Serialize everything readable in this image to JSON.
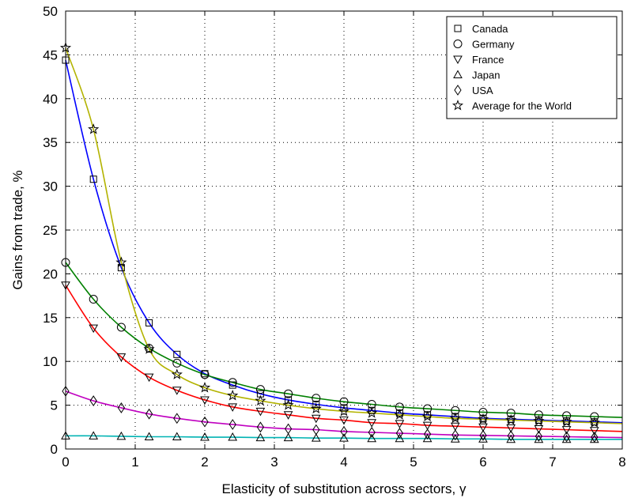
{
  "chart_data": {
    "type": "line",
    "title": "",
    "xlabel": "Elasticity of substitution across sectors, γ",
    "ylabel": "Gains from trade, %",
    "xlim": [
      0,
      8
    ],
    "ylim": [
      0,
      50
    ],
    "xticks": [
      0,
      1,
      2,
      3,
      4,
      5,
      6,
      7,
      8
    ],
    "yticks": [
      0,
      5,
      10,
      15,
      20,
      25,
      30,
      35,
      40,
      45,
      50
    ],
    "grid": true,
    "legend_position": "top-right",
    "x": [
      0,
      0.4,
      0.8,
      1.2,
      1.6,
      2.0,
      2.4,
      2.8,
      3.2,
      3.6,
      4.0,
      4.4,
      4.8,
      5.2,
      5.6,
      6.0,
      6.4,
      6.8,
      7.2,
      7.6
    ],
    "series": [
      {
        "name": "Canada",
        "marker": "square",
        "color": "#0000ff",
        "values": [
          44.4,
          30.8,
          20.7,
          14.4,
          10.8,
          8.6,
          7.3,
          6.3,
          5.6,
          5.1,
          4.7,
          4.4,
          4.1,
          3.9,
          3.7,
          3.5,
          3.4,
          3.3,
          3.2,
          3.1
        ]
      },
      {
        "name": "Germany",
        "marker": "circle",
        "color": "#008000",
        "values": [
          21.3,
          17.1,
          13.9,
          11.5,
          9.8,
          8.5,
          7.6,
          6.8,
          6.3,
          5.8,
          5.4,
          5.1,
          4.8,
          4.6,
          4.4,
          4.2,
          4.1,
          3.9,
          3.8,
          3.7
        ]
      },
      {
        "name": "France",
        "marker": "triangle-down",
        "color": "#ff0000",
        "values": [
          18.7,
          13.8,
          10.5,
          8.2,
          6.7,
          5.6,
          4.8,
          4.3,
          3.9,
          3.5,
          3.3,
          3.0,
          2.9,
          2.7,
          2.6,
          2.5,
          2.4,
          2.3,
          2.2,
          2.1
        ]
      },
      {
        "name": "Japan",
        "marker": "triangle-up",
        "color": "#00b3b3",
        "values": [
          1.5,
          1.5,
          1.45,
          1.4,
          1.4,
          1.35,
          1.35,
          1.3,
          1.3,
          1.25,
          1.25,
          1.2,
          1.2,
          1.2,
          1.15,
          1.15,
          1.1,
          1.1,
          1.1,
          1.1
        ]
      },
      {
        "name": "USA",
        "marker": "diamond",
        "color": "#c000c0",
        "values": [
          6.6,
          5.5,
          4.7,
          4.0,
          3.5,
          3.1,
          2.8,
          2.5,
          2.3,
          2.2,
          2.0,
          1.9,
          1.8,
          1.7,
          1.6,
          1.55,
          1.5,
          1.45,
          1.4,
          1.35
        ]
      },
      {
        "name": "Average for the World",
        "marker": "star",
        "color": "#b3b300",
        "values": [
          45.8,
          36.5,
          21.3,
          11.4,
          8.5,
          7.0,
          6.1,
          5.5,
          5.0,
          4.6,
          4.3,
          4.1,
          3.9,
          3.7,
          3.5,
          3.4,
          3.3,
          3.2,
          3.1,
          3.0
        ]
      }
    ]
  }
}
